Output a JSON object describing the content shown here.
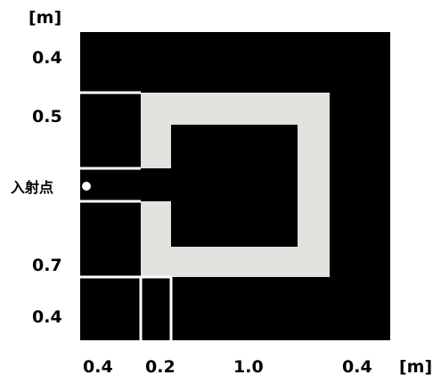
{
  "colors": {
    "background": "#000000",
    "frame": "#e2e2df",
    "dimension_lines": "#ffffff",
    "labels": "#000000",
    "source_marker": "#ffffff"
  },
  "labels": {
    "unit_top": "[m]",
    "unit_bottom": "[m]",
    "source": "入射点"
  },
  "dimensions": {
    "vertical": [
      "0.4",
      "0.5",
      "0.7",
      "0.4"
    ],
    "horizontal": [
      "0.4",
      "0.2",
      "1.0",
      "0.4"
    ]
  },
  "icons": {
    "source_marker": "source-point-icon"
  }
}
